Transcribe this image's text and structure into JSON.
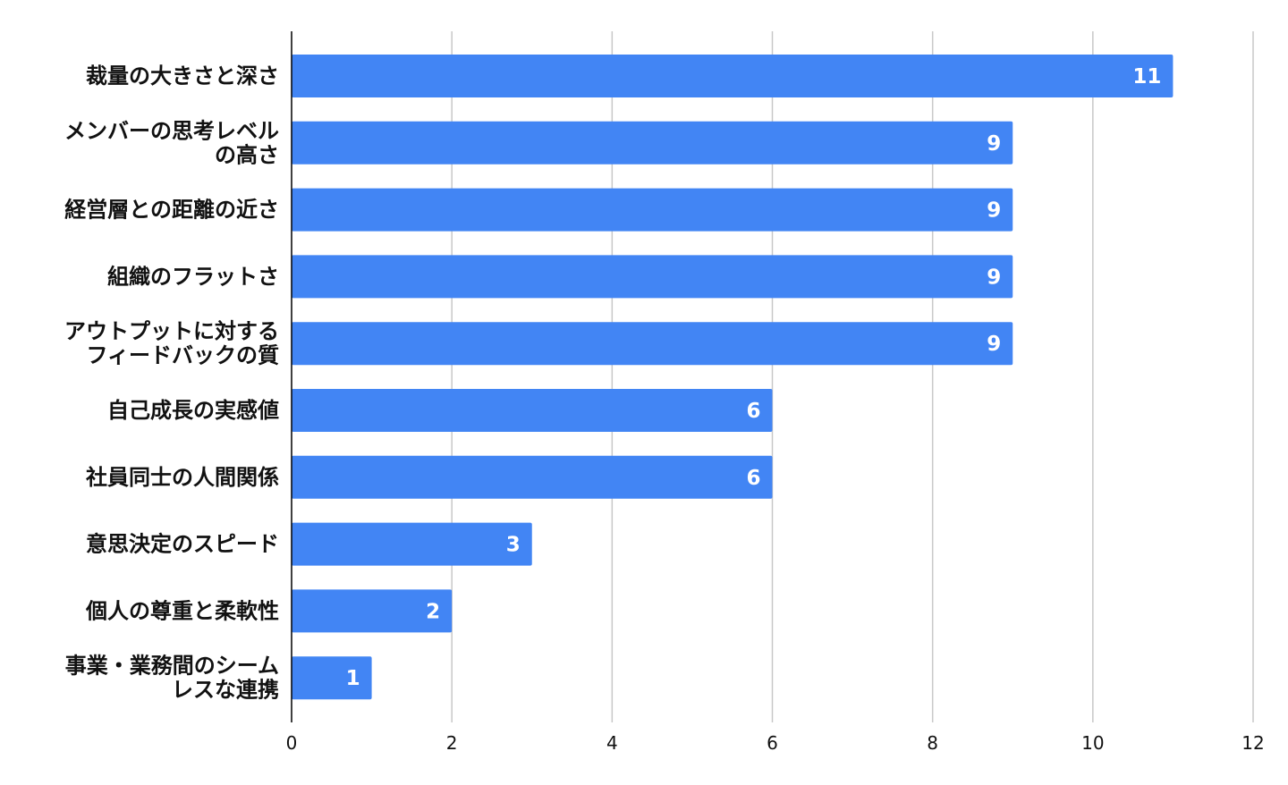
{
  "chart_data": {
    "type": "bar",
    "orientation": "horizontal",
    "categories": [
      [
        "裁量の大きさと深さ"
      ],
      [
        "メンバーの思考レベル",
        "の高さ"
      ],
      [
        "経営層との距離の近さ"
      ],
      [
        "組織のフラットさ"
      ],
      [
        "アウトプットに対する",
        "フィードバックの質"
      ],
      [
        "自己成長の実感値"
      ],
      [
        "社員同士の人間関係"
      ],
      [
        "意思決定のスピード"
      ],
      [
        "個人の尊重と柔軟性"
      ],
      [
        "事業・業務間のシーム",
        "レスな連携"
      ]
    ],
    "values": [
      11,
      9,
      9,
      9,
      9,
      6,
      6,
      3,
      2,
      1
    ],
    "data_labels": [
      "11",
      "9",
      "9",
      "9",
      "9",
      "6",
      "6",
      "3",
      "2",
      "1"
    ],
    "xlim": [
      0,
      12
    ],
    "x_ticks": [
      0,
      2,
      4,
      6,
      8,
      10,
      12
    ],
    "x_tick_labels": [
      "0",
      "2",
      "4",
      "6",
      "8",
      "10",
      "12"
    ],
    "title": "",
    "xlabel": "",
    "ylabel": "",
    "grid": true,
    "legend": "none",
    "bar_color": "#4285f4"
  }
}
